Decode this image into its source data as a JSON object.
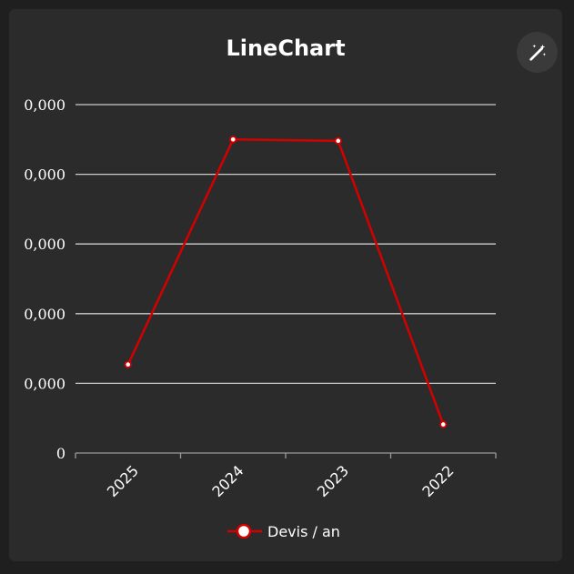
{
  "card": {
    "title": "LineChart",
    "magic_button_icon": "magic-wand-icon"
  },
  "colors": {
    "background": "#1f1f1f",
    "card": "#2b2b2b",
    "grid": "#cccccc",
    "series": "#d40000",
    "text": "#ffffff"
  },
  "chart_data": {
    "type": "line",
    "title": "LineChart",
    "categories": [
      "2025",
      "2024",
      "2023",
      "2022"
    ],
    "ytick_labels": [
      "0",
      "0,000",
      "0,000",
      "0,000",
      "0,000",
      "0,000"
    ],
    "ylim": [
      0,
      5
    ],
    "grid": true,
    "legend_position": "bottom-center",
    "series": [
      {
        "name": "Devis / an",
        "color": "#d40000",
        "values": [
          1.27,
          4.5,
          4.48,
          0.41
        ]
      }
    ]
  }
}
